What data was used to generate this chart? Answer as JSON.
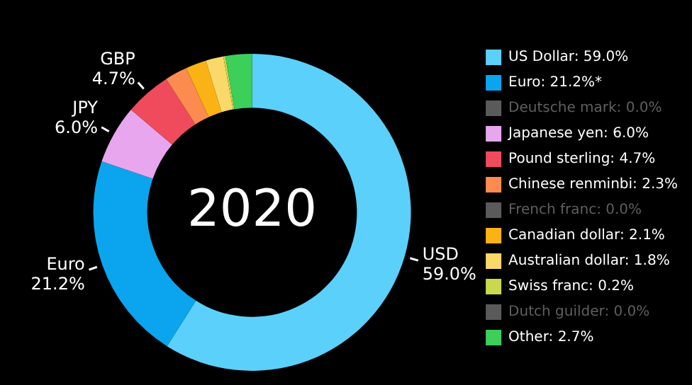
{
  "chart_data": {
    "type": "donut",
    "title": "2020",
    "categories": [
      "US Dollar: 59.0%",
      "Euro: 21.2%*",
      "Deutsche mark: 0.0%",
      "Japanese yen: 6.0%",
      "Pound sterling: 4.7%",
      "Chinese renminbi: 2.3%",
      "French franc: 0.0%",
      "Canadian dollar: 2.1%",
      "Australian dollar: 1.8%",
      "Swiss franc: 0.2%",
      "Dutch guilder: 0.0%",
      "Other: 2.7%"
    ],
    "values": [
      59.0,
      21.2,
      0.0,
      6.0,
      4.7,
      2.3,
      0.0,
      2.1,
      1.8,
      0.2,
      0.0,
      2.7
    ],
    "colors": [
      "#5bd0fb",
      "#0aa5ee",
      "#5a5a5a",
      "#e8a6ef",
      "#ef4b5c",
      "#fb8b4f",
      "#5a5a5a",
      "#fbb215",
      "#fbd86a",
      "#c9d94b",
      "#5a5a5a",
      "#3ccf5a"
    ],
    "value_labels": [
      "USD\n59.0%",
      "Euro\n21.2%",
      null,
      "JPY\n6.0%",
      "GBP\n4.7%",
      null,
      null,
      null,
      null,
      null,
      null,
      null
    ],
    "legend": "right"
  }
}
